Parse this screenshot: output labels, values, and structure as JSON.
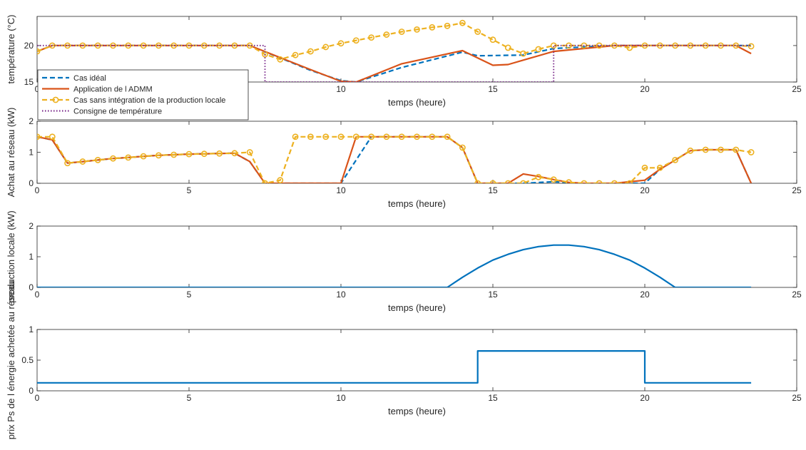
{
  "chart_data": [
    {
      "type": "line",
      "xlabel": "temps (heure)",
      "ylabel": "température (°C)",
      "xlim": [
        0,
        25
      ],
      "ylim": [
        15,
        24
      ],
      "xticks": [
        0,
        5,
        10,
        15,
        20,
        25
      ],
      "yticks": [
        15,
        20
      ],
      "grid": false,
      "legend_placement": "bottom-left",
      "series": [
        {
          "name": "Cas idéal",
          "color": "#0072BD",
          "style": "dashed",
          "x": [
            0,
            0.5,
            7,
            9,
            10,
            10.5,
            12,
            14,
            14.5,
            16,
            17,
            19,
            20,
            23.5
          ],
          "y": [
            19.2,
            20,
            20,
            16.6,
            15.2,
            15,
            17,
            19.1,
            18.6,
            18.7,
            19.6,
            20,
            20,
            20
          ]
        },
        {
          "name": "Application de l ADMM",
          "color": "#D95319",
          "style": "solid",
          "x": [
            0,
            0.5,
            7,
            9,
            10,
            10.5,
            12,
            14,
            15,
            15.5,
            16,
            17,
            19,
            20,
            23,
            23.5
          ],
          "y": [
            19.2,
            20,
            20,
            16.7,
            15.1,
            15,
            17.5,
            19.3,
            17.3,
            17.4,
            18,
            19.2,
            20,
            20,
            20,
            18.9
          ]
        },
        {
          "name": "Cas sans intégration de la production locale",
          "color": "#EDB120",
          "style": "dashed-marker",
          "x": [
            0,
            0.5,
            1,
            1.5,
            2,
            2.5,
            3,
            3.5,
            4,
            4.5,
            5,
            5.5,
            6,
            6.5,
            7,
            7.5,
            8,
            8.5,
            9,
            9.5,
            10,
            10.5,
            11,
            11.5,
            12,
            12.5,
            13,
            13.5,
            14,
            14.5,
            15,
            15.5,
            16,
            16.5,
            17,
            17.5,
            18,
            18.5,
            19,
            19.5,
            20,
            20.5,
            21,
            21.5,
            22,
            22.5,
            23,
            23.5
          ],
          "y": [
            19.2,
            20,
            20,
            20,
            20,
            20,
            20,
            20,
            20,
            20,
            20,
            20,
            20,
            20,
            20,
            18.8,
            18.1,
            18.7,
            19.2,
            19.8,
            20.3,
            20.7,
            21.1,
            21.5,
            21.9,
            22.2,
            22.5,
            22.7,
            23.1,
            21.9,
            20.8,
            19.7,
            18.9,
            19.5,
            20,
            20,
            20,
            20,
            20,
            19.7,
            20,
            20,
            20,
            20,
            20,
            20,
            20,
            19.9
          ]
        },
        {
          "name": "Consigne de température",
          "color": "#7E2F8E",
          "style": "dotted",
          "x": [
            0,
            7.5,
            7.5,
            17,
            17,
            23.5
          ],
          "y": [
            20,
            20,
            15,
            15,
            20,
            20
          ]
        }
      ]
    },
    {
      "type": "line",
      "xlabel": "temps (heure)",
      "ylabel": "Achat au réseau (kW)",
      "xlim": [
        0,
        25
      ],
      "ylim": [
        0,
        2
      ],
      "xticks": [
        0,
        5,
        10,
        15,
        20,
        25
      ],
      "yticks": [
        0,
        1,
        2
      ],
      "grid": false,
      "series": [
        {
          "color": "#0072BD",
          "style": "dashed",
          "x": [
            0,
            0.5,
            1,
            1.5,
            2,
            2.5,
            3,
            3.5,
            4,
            4.5,
            5,
            5.5,
            6,
            6.5,
            7,
            7.5,
            8,
            9,
            10,
            11,
            12,
            13,
            13.5,
            14,
            14.5,
            15,
            16,
            17,
            18,
            19,
            19.5,
            20,
            20.5,
            21,
            21.5,
            22,
            22.5,
            23,
            23.5
          ],
          "y": [
            1.5,
            1.4,
            0.65,
            0.7,
            0.75,
            0.8,
            0.83,
            0.87,
            0.9,
            0.92,
            0.94,
            0.95,
            0.96,
            0.97,
            0.7,
            0,
            0,
            0,
            0,
            1.5,
            1.5,
            1.5,
            1.5,
            1.15,
            0,
            0,
            0,
            0.05,
            0,
            0,
            0,
            0,
            0.45,
            0.75,
            1.05,
            1.08,
            1.08,
            1.08,
            0
          ]
        },
        {
          "color": "#D95319",
          "style": "solid",
          "x": [
            0,
            0.5,
            1,
            1.5,
            2,
            2.5,
            3,
            3.5,
            4,
            4.5,
            5,
            5.5,
            6,
            6.5,
            7,
            7.5,
            8,
            9,
            10,
            10.5,
            11,
            12,
            13,
            13.5,
            14,
            14.5,
            15,
            15.5,
            16,
            16.5,
            17,
            17.5,
            18,
            19,
            20,
            20.5,
            21,
            21.5,
            22,
            22.5,
            23,
            23.5
          ],
          "y": [
            1.5,
            1.4,
            0.65,
            0.7,
            0.75,
            0.8,
            0.83,
            0.87,
            0.9,
            0.92,
            0.94,
            0.95,
            0.96,
            0.97,
            0.7,
            0,
            0,
            0,
            0,
            1.5,
            1.5,
            1.5,
            1.5,
            1.5,
            1.15,
            0,
            0,
            0,
            0.3,
            0.22,
            0.12,
            0.03,
            0,
            0,
            0.1,
            0.45,
            0.75,
            1.05,
            1.08,
            1.08,
            1.08,
            0
          ]
        },
        {
          "color": "#EDB120",
          "style": "dashed-marker",
          "x": [
            0,
            0.5,
            1,
            1.5,
            2,
            2.5,
            3,
            3.5,
            4,
            4.5,
            5,
            5.5,
            6,
            6.5,
            7,
            7.5,
            8,
            8.5,
            9,
            9.5,
            10,
            10.5,
            11,
            11.5,
            12,
            12.5,
            13,
            13.5,
            14,
            14.5,
            15,
            15.5,
            16,
            16.5,
            17,
            17.5,
            18,
            18.5,
            19,
            19.5,
            20,
            20.5,
            21,
            21.5,
            22,
            22.5,
            23,
            23.5
          ],
          "y": [
            1.5,
            1.5,
            0.65,
            0.7,
            0.75,
            0.8,
            0.83,
            0.87,
            0.9,
            0.92,
            0.94,
            0.95,
            0.96,
            0.97,
            1.0,
            0,
            0.1,
            1.5,
            1.5,
            1.5,
            1.5,
            1.5,
            1.5,
            1.5,
            1.5,
            1.5,
            1.5,
            1.5,
            1.15,
            0,
            0,
            0,
            0,
            0.2,
            0.12,
            0.03,
            0,
            0,
            0,
            0,
            0.5,
            0.5,
            0.75,
            1.05,
            1.08,
            1.08,
            1.08,
            1.0
          ]
        }
      ]
    },
    {
      "type": "line",
      "xlabel": "temps (heure)",
      "ylabel": "production locale (kW)",
      "xlim": [
        0,
        25
      ],
      "ylim": [
        0,
        2
      ],
      "xticks": [
        0,
        5,
        10,
        15,
        20,
        25
      ],
      "yticks": [
        0,
        1,
        2
      ],
      "grid": false,
      "series": [
        {
          "color": "#0072BD",
          "style": "solid",
          "x": [
            0,
            13.5,
            14,
            14.5,
            15,
            15.5,
            16,
            16.5,
            17,
            17.5,
            18,
            18.5,
            19,
            19.5,
            20,
            20.5,
            21,
            21.5,
            23.5
          ],
          "y": [
            0,
            0,
            0.33,
            0.63,
            0.89,
            1.08,
            1.23,
            1.33,
            1.38,
            1.38,
            1.33,
            1.23,
            1.08,
            0.89,
            0.63,
            0.33,
            0,
            0,
            0
          ]
        }
      ]
    },
    {
      "type": "line",
      "xlabel": "temps (heure)",
      "ylabel": "prix Ps de l énergie achetée au réseau",
      "xlim": [
        0,
        25
      ],
      "ylim": [
        0,
        1
      ],
      "xticks": [
        0,
        5,
        10,
        15,
        20,
        25
      ],
      "yticks": [
        0,
        0.5,
        1
      ],
      "grid": false,
      "series": [
        {
          "color": "#0072BD",
          "style": "solid",
          "x": [
            0,
            14.5,
            14.5,
            20,
            20,
            23.5
          ],
          "y": [
            0.13,
            0.13,
            0.65,
            0.65,
            0.13,
            0.13
          ]
        }
      ]
    }
  ]
}
